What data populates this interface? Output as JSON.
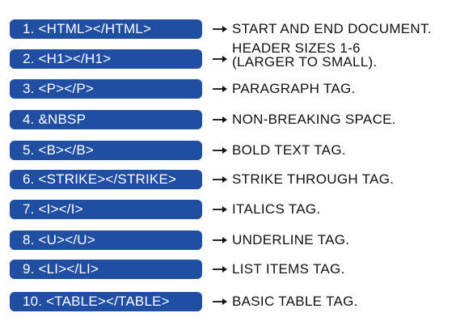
{
  "colors": {
    "pill_background": "#1f4ea3",
    "pill_text": "#ffffff",
    "description_text": "#111111",
    "arrow": "#111111"
  },
  "icons": {
    "arrow": "right-arrow-icon"
  },
  "rows": [
    {
      "tag": "1. <HTML></HTML>",
      "description": [
        "START AND END DOCUMENT."
      ]
    },
    {
      "tag": "2. <H1></H1>",
      "description": [
        "HEADER SIZES 1-6",
        "(LARGER TO SMALL)."
      ]
    },
    {
      "tag": "3. <P></P>",
      "description": [
        "PARAGRAPH TAG."
      ]
    },
    {
      "tag": "4. &NBSP",
      "description": [
        "NON-BREAKING SPACE."
      ]
    },
    {
      "tag": "5. <B></B>",
      "description": [
        "BOLD TEXT TAG."
      ]
    },
    {
      "tag": "6. <STRIKE></STRIKE>",
      "description": [
        "STRIKE THROUGH TAG."
      ]
    },
    {
      "tag": "7. <I></I>",
      "description": [
        "ITALICS TAG."
      ]
    },
    {
      "tag": "8. <U></U>",
      "description": [
        "UNDERLINE TAG."
      ]
    },
    {
      "tag": "9. <LI></LI>",
      "description": [
        "LIST ITEMS TAG."
      ]
    },
    {
      "tag": "10. <TABLE></TABLE>",
      "description": [
        "BASIC TABLE TAG."
      ]
    }
  ]
}
